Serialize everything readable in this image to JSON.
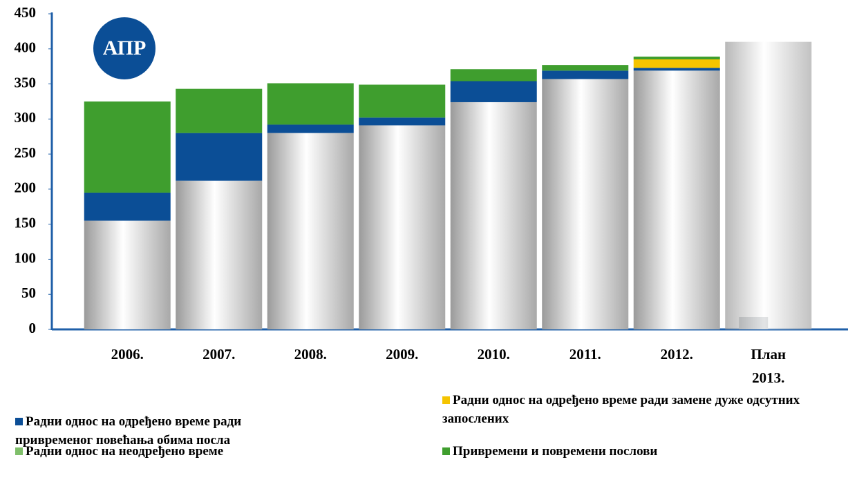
{
  "chart_data": {
    "type": "stacked-bar",
    "logo_text": "АПР",
    "categories": [
      "2006.",
      "2007.",
      "2008.",
      "2009.",
      "2010.",
      "2011.",
      "2012.",
      "План\n2013."
    ],
    "series": [
      {
        "name": "Радни однос на неодређено време",
        "color": "#d9d9d9",
        "values": [
          155,
          212,
          280,
          291,
          324,
          357,
          369,
          410
        ]
      },
      {
        "name": "Радни однос на одређено време ради привременог повећања обима посла",
        "color": "#0b4e96",
        "values": [
          40,
          68,
          12,
          11,
          30,
          12,
          4,
          null
        ]
      },
      {
        "name": "Радни однос на одређено време ради замене дуже одсутних запослених",
        "color": "#f5c400",
        "values": [
          null,
          null,
          null,
          null,
          null,
          null,
          12,
          null
        ]
      },
      {
        "name": "Привремени и повремени послови",
        "color": "#3f9e2e",
        "values": [
          130,
          63,
          59,
          47,
          17,
          8,
          4,
          null
        ]
      }
    ],
    "ylim": [
      0,
      450
    ],
    "yticks": [
      0,
      50,
      100,
      150,
      200,
      250,
      300,
      350,
      400,
      450
    ]
  }
}
